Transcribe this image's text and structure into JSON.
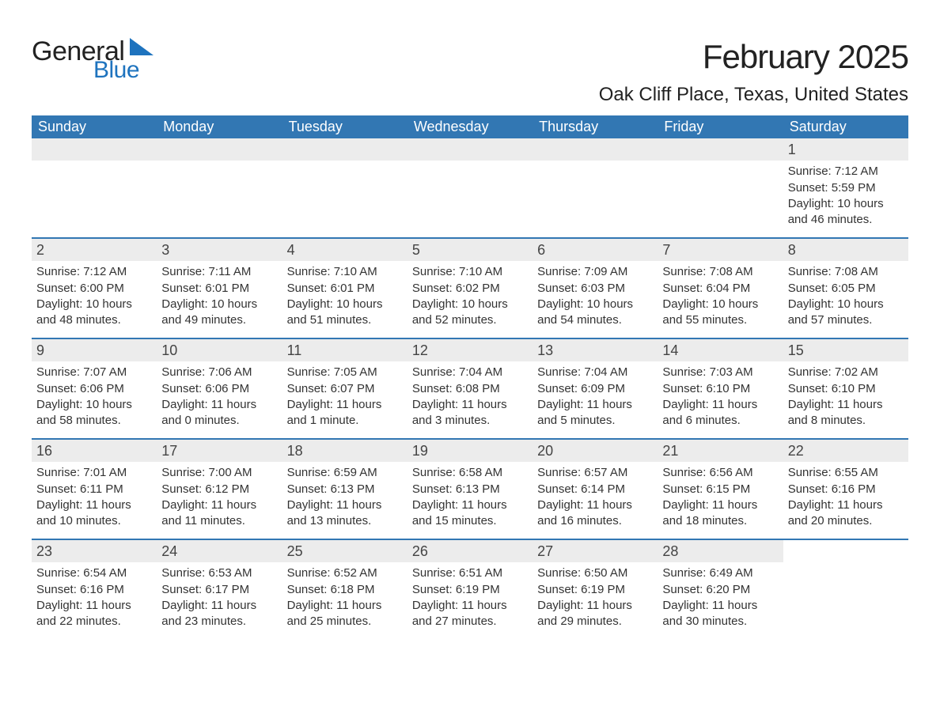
{
  "brand": {
    "part1": "General",
    "part2": "Blue",
    "triangle_color": "#1e73be"
  },
  "title": "February 2025",
  "location": "Oak Cliff Place, Texas, United States",
  "colors": {
    "header_bg": "#3277b3",
    "header_text": "#ffffff",
    "row_separator": "#3277b3",
    "daynum_bg": "#ececec",
    "body_text": "#333333",
    "background": "#ffffff"
  },
  "typography": {
    "title_fontsize": 42,
    "location_fontsize": 24,
    "dayheader_fontsize": 18,
    "cell_fontsize": 15,
    "font_family": "Segoe UI, Arial, sans-serif"
  },
  "day_labels": [
    "Sunday",
    "Monday",
    "Tuesday",
    "Wednesday",
    "Thursday",
    "Friday",
    "Saturday"
  ],
  "weeks": [
    [
      {
        "empty": true
      },
      {
        "empty": true
      },
      {
        "empty": true
      },
      {
        "empty": true
      },
      {
        "empty": true
      },
      {
        "empty": true
      },
      {
        "day": "1",
        "sunrise": "Sunrise: 7:12 AM",
        "sunset": "Sunset: 5:59 PM",
        "daylight1": "Daylight: 10 hours",
        "daylight2": "and 46 minutes."
      }
    ],
    [
      {
        "day": "2",
        "sunrise": "Sunrise: 7:12 AM",
        "sunset": "Sunset: 6:00 PM",
        "daylight1": "Daylight: 10 hours",
        "daylight2": "and 48 minutes."
      },
      {
        "day": "3",
        "sunrise": "Sunrise: 7:11 AM",
        "sunset": "Sunset: 6:01 PM",
        "daylight1": "Daylight: 10 hours",
        "daylight2": "and 49 minutes."
      },
      {
        "day": "4",
        "sunrise": "Sunrise: 7:10 AM",
        "sunset": "Sunset: 6:01 PM",
        "daylight1": "Daylight: 10 hours",
        "daylight2": "and 51 minutes."
      },
      {
        "day": "5",
        "sunrise": "Sunrise: 7:10 AM",
        "sunset": "Sunset: 6:02 PM",
        "daylight1": "Daylight: 10 hours",
        "daylight2": "and 52 minutes."
      },
      {
        "day": "6",
        "sunrise": "Sunrise: 7:09 AM",
        "sunset": "Sunset: 6:03 PM",
        "daylight1": "Daylight: 10 hours",
        "daylight2": "and 54 minutes."
      },
      {
        "day": "7",
        "sunrise": "Sunrise: 7:08 AM",
        "sunset": "Sunset: 6:04 PM",
        "daylight1": "Daylight: 10 hours",
        "daylight2": "and 55 minutes."
      },
      {
        "day": "8",
        "sunrise": "Sunrise: 7:08 AM",
        "sunset": "Sunset: 6:05 PM",
        "daylight1": "Daylight: 10 hours",
        "daylight2": "and 57 minutes."
      }
    ],
    [
      {
        "day": "9",
        "sunrise": "Sunrise: 7:07 AM",
        "sunset": "Sunset: 6:06 PM",
        "daylight1": "Daylight: 10 hours",
        "daylight2": "and 58 minutes."
      },
      {
        "day": "10",
        "sunrise": "Sunrise: 7:06 AM",
        "sunset": "Sunset: 6:06 PM",
        "daylight1": "Daylight: 11 hours",
        "daylight2": "and 0 minutes."
      },
      {
        "day": "11",
        "sunrise": "Sunrise: 7:05 AM",
        "sunset": "Sunset: 6:07 PM",
        "daylight1": "Daylight: 11 hours",
        "daylight2": "and 1 minute."
      },
      {
        "day": "12",
        "sunrise": "Sunrise: 7:04 AM",
        "sunset": "Sunset: 6:08 PM",
        "daylight1": "Daylight: 11 hours",
        "daylight2": "and 3 minutes."
      },
      {
        "day": "13",
        "sunrise": "Sunrise: 7:04 AM",
        "sunset": "Sunset: 6:09 PM",
        "daylight1": "Daylight: 11 hours",
        "daylight2": "and 5 minutes."
      },
      {
        "day": "14",
        "sunrise": "Sunrise: 7:03 AM",
        "sunset": "Sunset: 6:10 PM",
        "daylight1": "Daylight: 11 hours",
        "daylight2": "and 6 minutes."
      },
      {
        "day": "15",
        "sunrise": "Sunrise: 7:02 AM",
        "sunset": "Sunset: 6:10 PM",
        "daylight1": "Daylight: 11 hours",
        "daylight2": "and 8 minutes."
      }
    ],
    [
      {
        "day": "16",
        "sunrise": "Sunrise: 7:01 AM",
        "sunset": "Sunset: 6:11 PM",
        "daylight1": "Daylight: 11 hours",
        "daylight2": "and 10 minutes."
      },
      {
        "day": "17",
        "sunrise": "Sunrise: 7:00 AM",
        "sunset": "Sunset: 6:12 PM",
        "daylight1": "Daylight: 11 hours",
        "daylight2": "and 11 minutes."
      },
      {
        "day": "18",
        "sunrise": "Sunrise: 6:59 AM",
        "sunset": "Sunset: 6:13 PM",
        "daylight1": "Daylight: 11 hours",
        "daylight2": "and 13 minutes."
      },
      {
        "day": "19",
        "sunrise": "Sunrise: 6:58 AM",
        "sunset": "Sunset: 6:13 PM",
        "daylight1": "Daylight: 11 hours",
        "daylight2": "and 15 minutes."
      },
      {
        "day": "20",
        "sunrise": "Sunrise: 6:57 AM",
        "sunset": "Sunset: 6:14 PM",
        "daylight1": "Daylight: 11 hours",
        "daylight2": "and 16 minutes."
      },
      {
        "day": "21",
        "sunrise": "Sunrise: 6:56 AM",
        "sunset": "Sunset: 6:15 PM",
        "daylight1": "Daylight: 11 hours",
        "daylight2": "and 18 minutes."
      },
      {
        "day": "22",
        "sunrise": "Sunrise: 6:55 AM",
        "sunset": "Sunset: 6:16 PM",
        "daylight1": "Daylight: 11 hours",
        "daylight2": "and 20 minutes."
      }
    ],
    [
      {
        "day": "23",
        "sunrise": "Sunrise: 6:54 AM",
        "sunset": "Sunset: 6:16 PM",
        "daylight1": "Daylight: 11 hours",
        "daylight2": "and 22 minutes."
      },
      {
        "day": "24",
        "sunrise": "Sunrise: 6:53 AM",
        "sunset": "Sunset: 6:17 PM",
        "daylight1": "Daylight: 11 hours",
        "daylight2": "and 23 minutes."
      },
      {
        "day": "25",
        "sunrise": "Sunrise: 6:52 AM",
        "sunset": "Sunset: 6:18 PM",
        "daylight1": "Daylight: 11 hours",
        "daylight2": "and 25 minutes."
      },
      {
        "day": "26",
        "sunrise": "Sunrise: 6:51 AM",
        "sunset": "Sunset: 6:19 PM",
        "daylight1": "Daylight: 11 hours",
        "daylight2": "and 27 minutes."
      },
      {
        "day": "27",
        "sunrise": "Sunrise: 6:50 AM",
        "sunset": "Sunset: 6:19 PM",
        "daylight1": "Daylight: 11 hours",
        "daylight2": "and 29 minutes."
      },
      {
        "day": "28",
        "sunrise": "Sunrise: 6:49 AM",
        "sunset": "Sunset: 6:20 PM",
        "daylight1": "Daylight: 11 hours",
        "daylight2": "and 30 minutes."
      },
      {
        "empty": true
      }
    ]
  ]
}
